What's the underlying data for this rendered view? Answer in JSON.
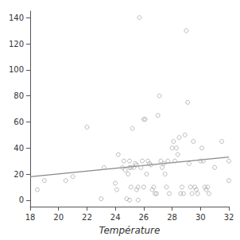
{
  "chart_data": {
    "type": "scatter",
    "xlabel": "Température",
    "xlim": [
      18,
      32
    ],
    "ylim": [
      -5,
      145
    ],
    "xticks": [
      18,
      20,
      22,
      24,
      26,
      28,
      30,
      32
    ],
    "yticks": [
      0,
      20,
      40,
      60,
      80,
      100,
      120,
      140
    ],
    "grid": false,
    "series": [
      {
        "type": "scatter",
        "color": "#aaaaaa",
        "x": [
          18.5,
          19.0,
          20.5,
          21.0,
          22.0,
          23.0,
          23.2,
          24.0,
          24.1,
          24.2,
          24.5,
          24.6,
          24.7,
          24.8,
          24.9,
          25.0,
          25.0,
          25.0,
          25.1,
          25.1,
          25.2,
          25.3,
          25.4,
          25.5,
          25.5,
          25.6,
          25.6,
          25.7,
          25.8,
          25.9,
          26.0,
          26.0,
          26.1,
          26.2,
          26.3,
          26.4,
          26.5,
          26.6,
          26.7,
          26.8,
          26.9,
          27.0,
          27.1,
          27.2,
          27.3,
          27.4,
          27.5,
          27.6,
          27.7,
          27.8,
          28.0,
          28.1,
          28.2,
          28.3,
          28.4,
          28.5,
          28.6,
          28.7,
          28.8,
          28.9,
          29.0,
          29.1,
          29.2,
          29.3,
          29.4,
          29.5,
          29.6,
          29.7,
          29.8,
          30.0,
          30.1,
          30.2,
          30.3,
          30.4,
          30.5,
          30.6,
          31.0,
          31.5,
          32.0,
          32.0
        ],
        "values": [
          8,
          15,
          15,
          18,
          56,
          1,
          25,
          13,
          8,
          35,
          25,
          30,
          23,
          1,
          20,
          25,
          30,
          0,
          25,
          10,
          55,
          25,
          28,
          27,
          8,
          10,
          0,
          140,
          25,
          30,
          10,
          62,
          62,
          20,
          30,
          28,
          27,
          8,
          10,
          5,
          5,
          65,
          80,
          30,
          25,
          28,
          20,
          10,
          30,
          5,
          40,
          45,
          30,
          40,
          35,
          48,
          5,
          10,
          5,
          50,
          130,
          75,
          28,
          10,
          5,
          45,
          10,
          8,
          5,
          30,
          40,
          30,
          10,
          8,
          10,
          5,
          25,
          45,
          15,
          30
        ]
      },
      {
        "type": "line",
        "color": "#888888",
        "x": [
          18,
          32
        ],
        "values": [
          18,
          33
        ]
      }
    ]
  }
}
